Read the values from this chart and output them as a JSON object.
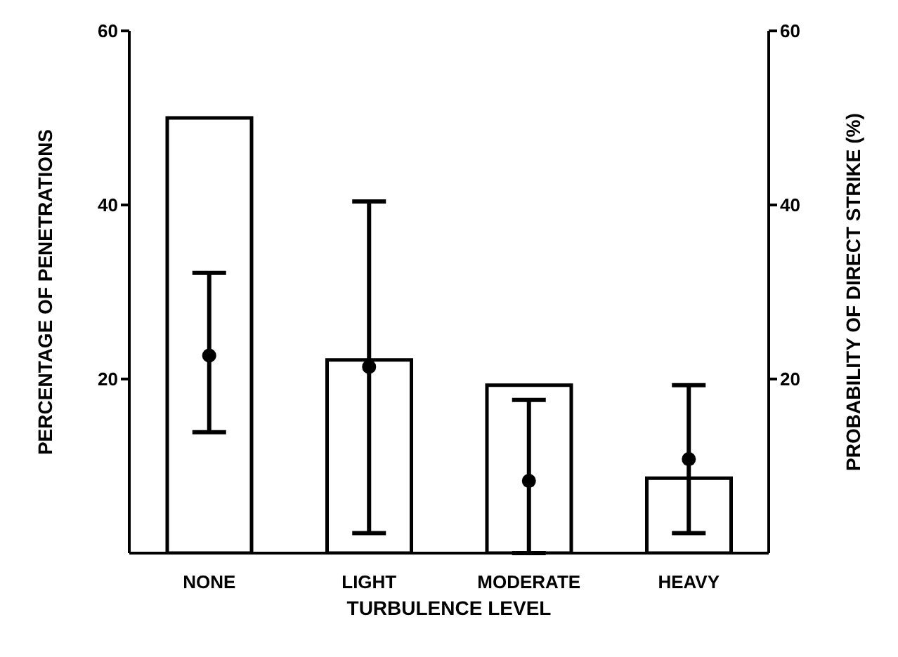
{
  "chart_data": {
    "type": "bar",
    "xlabel": "TURBULENCE LEVEL",
    "ylabel": "PERCENTAGE OF PENETRATIONS",
    "y2label": "PROBABILITY OF DIRECT STRIKE (%)",
    "categories": [
      "NONE",
      "LIGHT",
      "MODERATE",
      "HEAVY"
    ],
    "series": [
      {
        "color": "#ffffff",
        "values": [
          50,
          22.2,
          19.3,
          8.6
        ]
      },
      {
        "type": "scatter",
        "color": "#000000",
        "values": [
          22.7,
          21.4,
          8.3,
          10.8
        ],
        "errors": [
          [
            13.9,
            32.2
          ],
          [
            2.3,
            40.4
          ],
          [
            0,
            17.6
          ],
          [
            2.3,
            19.3
          ]
        ]
      }
    ],
    "ylim": [
      0,
      60
    ],
    "yticks": [
      20,
      40,
      60
    ],
    "y2lim": [
      0,
      60
    ],
    "y2ticks": [
      20,
      40,
      60
    ],
    "grid": false,
    "legend": false,
    "marker": "circle"
  }
}
